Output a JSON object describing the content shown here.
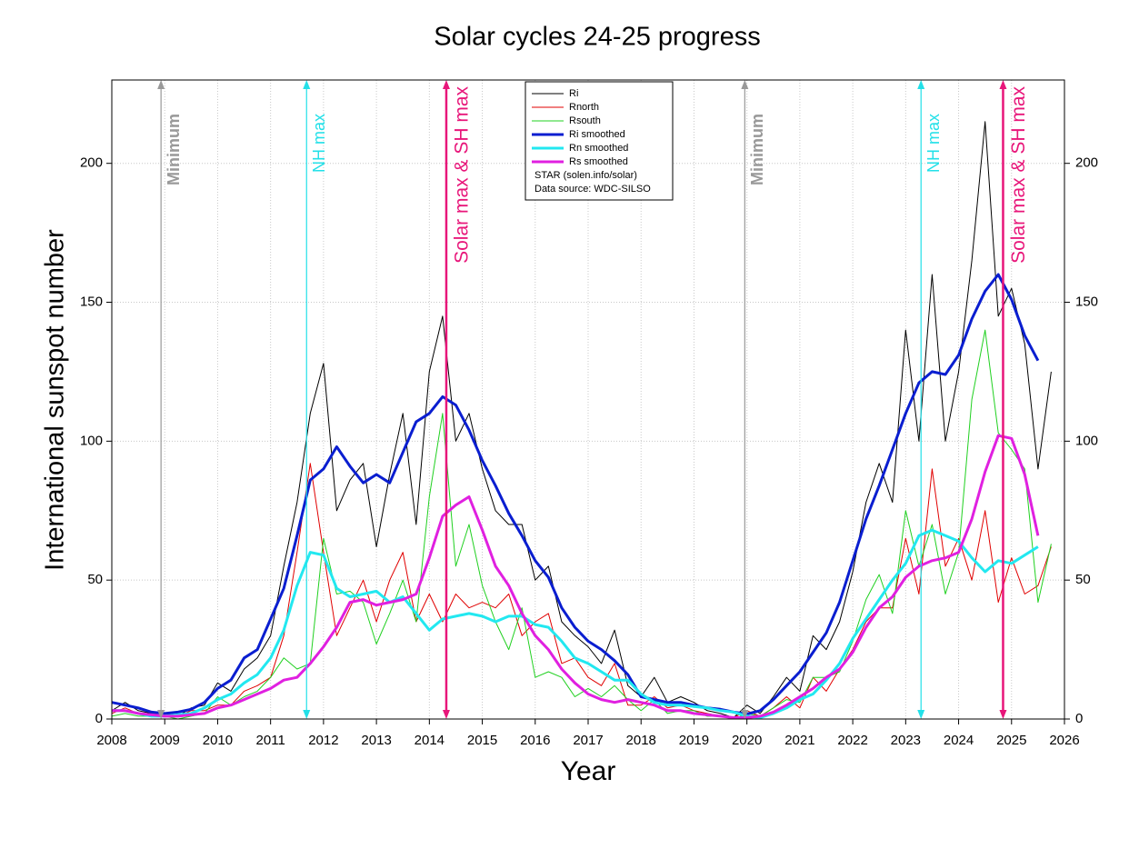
{
  "chart_data": {
    "type": "line",
    "title": "Solar cycles 24-25 progress",
    "x_label": "Year",
    "y_label": "International sunspot number",
    "xlim": [
      2008,
      2026
    ],
    "ylim": [
      0,
      230
    ],
    "xticks": [
      2008,
      2009,
      2010,
      2011,
      2012,
      2013,
      2014,
      2015,
      2016,
      2017,
      2018,
      2019,
      2020,
      2021,
      2022,
      2023,
      2024,
      2025,
      2026
    ],
    "yticks": [
      0,
      50,
      100,
      150,
      200
    ],
    "grid": true,
    "legend_position": "top",
    "annotations": [
      "STAR (solen.info/solar)",
      "Data source: WDC-SILSO"
    ],
    "vlines": [
      {
        "x": 2008.93,
        "label": "Minimum",
        "color": "#999999"
      },
      {
        "x": 2011.68,
        "label": "NH max",
        "color": "#22e0e8"
      },
      {
        "x": 2014.32,
        "label": "Solar max & SH max",
        "color": "#e8167a"
      },
      {
        "x": 2019.96,
        "label": "Minimum",
        "color": "#999999"
      },
      {
        "x": 2023.29,
        "label": "NH max",
        "color": "#22e0e8"
      },
      {
        "x": 2024.84,
        "label": "Solar max & SH max",
        "color": "#e8167a"
      }
    ],
    "x": [
      2008,
      2008.25,
      2008.5,
      2008.75,
      2009,
      2009.25,
      2009.5,
      2009.75,
      2010,
      2010.25,
      2010.5,
      2010.75,
      2011,
      2011.25,
      2011.5,
      2011.75,
      2012,
      2012.25,
      2012.5,
      2012.75,
      2013,
      2013.25,
      2013.5,
      2013.75,
      2014,
      2014.25,
      2014.5,
      2014.75,
      2015,
      2015.25,
      2015.5,
      2015.75,
      2016,
      2016.25,
      2016.5,
      2016.75,
      2017,
      2017.25,
      2017.5,
      2017.75,
      2018,
      2018.25,
      2018.5,
      2018.75,
      2019,
      2019.25,
      2019.5,
      2019.75,
      2020,
      2020.25,
      2020.5,
      2020.75,
      2021,
      2021.25,
      2021.5,
      2021.75,
      2022,
      2022.25,
      2022.5,
      2022.75,
      2023,
      2023.25,
      2023.5,
      2023.75,
      2024,
      2024.25,
      2024.5,
      2024.75,
      2025,
      2025.25,
      2025.5,
      2025.75
    ],
    "series": [
      {
        "name": "Ri",
        "color": "#000000",
        "line_width": 1,
        "values": [
          3,
          6,
          3,
          2,
          2,
          1,
          4,
          5,
          13,
          10,
          18,
          22,
          30,
          55,
          78,
          110,
          128,
          75,
          86,
          92,
          62,
          88,
          110,
          70,
          125,
          145,
          100,
          110,
          90,
          75,
          70,
          70,
          50,
          55,
          35,
          30,
          26,
          20,
          32,
          12,
          8,
          15,
          6,
          8,
          6,
          3,
          2,
          0.5,
          5,
          2,
          8,
          15,
          10,
          30,
          25,
          35,
          53,
          78,
          92,
          78,
          140,
          100,
          160,
          100,
          125,
          165,
          215,
          145,
          155,
          135,
          90,
          125
        ]
      },
      {
        "name": "Rnorth",
        "color": "#e00000",
        "line_width": 1,
        "values": [
          2,
          4,
          2,
          1,
          1,
          1,
          3,
          3,
          5,
          5,
          10,
          12,
          15,
          30,
          60,
          92,
          60,
          30,
          40,
          50,
          35,
          50,
          60,
          35,
          45,
          35,
          45,
          40,
          42,
          40,
          45,
          30,
          35,
          38,
          20,
          22,
          15,
          12,
          20,
          5,
          5,
          8,
          4,
          5,
          3,
          2,
          1,
          0.5,
          3,
          1,
          4,
          8,
          4,
          15,
          10,
          18,
          25,
          35,
          40,
          40,
          65,
          45,
          90,
          55,
          65,
          50,
          75,
          42,
          58,
          45,
          48,
          62
        ]
      },
      {
        "name": "Rsouth",
        "color": "#20d020",
        "line_width": 1,
        "values": [
          1,
          2,
          1,
          1,
          1,
          0,
          1,
          2,
          8,
          5,
          8,
          10,
          15,
          22,
          18,
          20,
          65,
          45,
          46,
          42,
          27,
          38,
          50,
          35,
          80,
          110,
          55,
          70,
          48,
          35,
          25,
          40,
          15,
          17,
          15,
          8,
          11,
          8,
          12,
          7,
          3,
          7,
          2,
          3,
          3,
          1,
          1,
          0,
          2,
          1,
          4,
          7,
          6,
          15,
          15,
          17,
          28,
          43,
          52,
          38,
          75,
          55,
          70,
          45,
          60,
          115,
          140,
          103,
          97,
          90,
          42,
          63
        ]
      },
      {
        "name": "Ri smoothed",
        "color": "#0a1ed0",
        "line_width": 3,
        "values": [
          6,
          5,
          4,
          2.5,
          2,
          2.5,
          3.5,
          6,
          11,
          14,
          22,
          25,
          36,
          47,
          66,
          86,
          90,
          98,
          91,
          85,
          88,
          85,
          96,
          107,
          110,
          116,
          113,
          104,
          93,
          84,
          74,
          66,
          57,
          51,
          40,
          33,
          28,
          25,
          21,
          16,
          8,
          7,
          6,
          6,
          5,
          4,
          3.5,
          2.5,
          1.8,
          3,
          7,
          12,
          17,
          24,
          31,
          42,
          57,
          72,
          84,
          97,
          110,
          121,
          125,
          124,
          131,
          144,
          154,
          160,
          151,
          138,
          129,
          null
        ]
      },
      {
        "name": "Rn smoothed",
        "color": "#22e8f0",
        "line_width": 3,
        "values": [
          3,
          3,
          2,
          1,
          1,
          1.5,
          2,
          4,
          7,
          9,
          13,
          16,
          22,
          32,
          48,
          60,
          59,
          47,
          44,
          45,
          46,
          42,
          44,
          38,
          32,
          36,
          37,
          38,
          37,
          35,
          37,
          37,
          34,
          33,
          28,
          22,
          20,
          17,
          14,
          14,
          9,
          6,
          5,
          5,
          4.5,
          4,
          3,
          2.5,
          1,
          0.5,
          2,
          4,
          7,
          9,
          14,
          20,
          29,
          36,
          43,
          50,
          56,
          66,
          68,
          66,
          64,
          58,
          53,
          57,
          56,
          59,
          62,
          null
        ]
      },
      {
        "name": "Rs smoothed",
        "color": "#e020e0",
        "line_width": 3,
        "values": [
          3,
          3,
          2,
          1.5,
          1,
          1,
          1.5,
          2,
          4,
          5,
          7,
          9,
          11,
          14,
          15,
          20,
          26,
          33,
          42,
          43,
          41,
          42,
          43,
          45,
          58,
          73,
          77,
          80,
          68,
          55,
          48,
          38,
          30,
          25,
          18,
          13,
          9,
          7,
          6,
          7,
          6,
          5,
          3,
          3,
          2,
          1.5,
          1,
          0.5,
          0.5,
          1,
          2.5,
          5,
          8,
          11,
          15,
          18,
          24,
          33,
          40,
          44,
          51,
          55,
          57,
          58,
          60,
          72,
          89,
          102,
          101,
          88,
          66,
          null
        ]
      }
    ]
  }
}
